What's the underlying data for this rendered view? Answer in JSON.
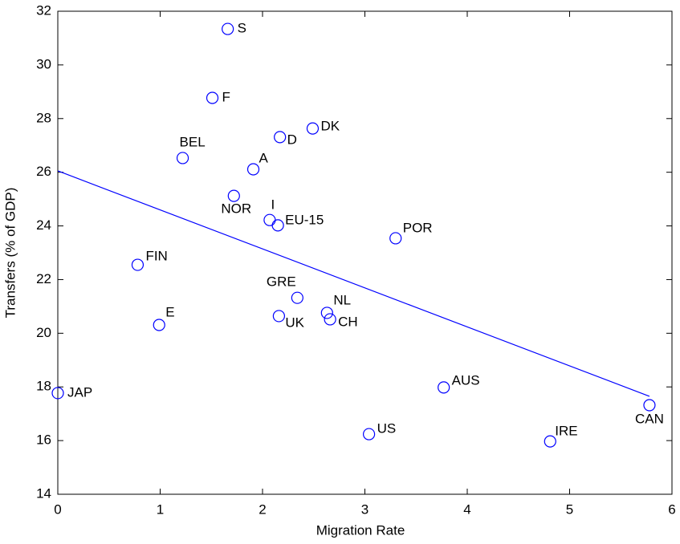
{
  "chart_data": {
    "type": "scatter",
    "xlabel": "Migration Rate",
    "ylabel": "Transfers (% of GDP)",
    "xlim": [
      0,
      6
    ],
    "ylim": [
      14,
      32
    ],
    "xticks": [
      0,
      1,
      2,
      3,
      4,
      5,
      6
    ],
    "yticks": [
      14,
      16,
      18,
      20,
      22,
      24,
      26,
      28,
      30,
      32
    ],
    "color": "#0000ff",
    "labels": [
      "S",
      "F",
      "DK",
      "D",
      "BEL",
      "A",
      "NOR",
      "I",
      "EU-15",
      "POR",
      "FIN",
      "GRE",
      "NL",
      "CH",
      "UK",
      "E",
      "JAP",
      "AUS",
      "CAN",
      "US",
      "IRE"
    ],
    "x": [
      1.66,
      1.51,
      2.49,
      2.17,
      1.22,
      1.91,
      1.72,
      2.07,
      2.15,
      3.3,
      0.78,
      2.34,
      2.63,
      2.66,
      2.16,
      0.99,
      0,
      3.77,
      5.78,
      3.04,
      4.81
    ],
    "values": [
      31.34,
      28.77,
      27.63,
      27.31,
      26.53,
      26.11,
      25.12,
      24.22,
      24.02,
      23.54,
      22.55,
      21.32,
      20.76,
      20.52,
      20.64,
      20.31,
      17.77,
      17.98,
      17.32,
      16.24,
      15.97
    ],
    "fit": {
      "type": "line",
      "x": [
        0,
        5.78
      ],
      "values": [
        26.05,
        17.65
      ],
      "color": "#0000ff"
    }
  }
}
